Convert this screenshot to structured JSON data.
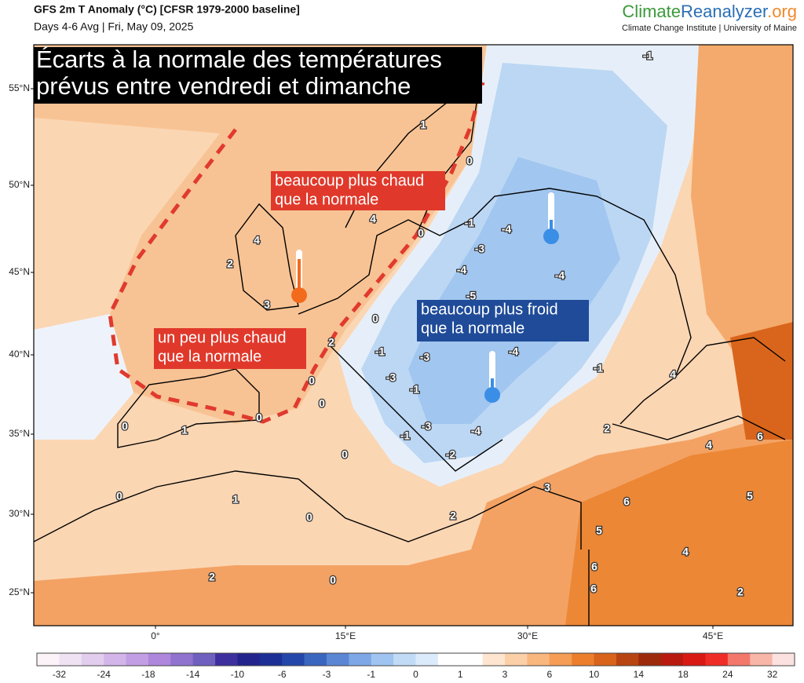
{
  "header": {
    "title": "GFS 2m T Anomaly (°C) [CFSR 1979-2000 baseline]",
    "subtitle": "Days 4-6 Avg | Fri, May 09, 2025",
    "brand": {
      "part1": "Climate",
      "part2": "Reanalyzer",
      "part3": ".org"
    },
    "institute": "Climate Change Institute | University of Maine"
  },
  "map": {
    "headline": [
      "Écarts à la normale des températures",
      "prévus entre vendredi et dimanche"
    ],
    "annotations": [
      {
        "lines": [
          "beaucoup plus chaud",
          "que la normale"
        ],
        "color": "#e0392b"
      },
      {
        "lines": [
          "un peu plus chaud",
          "que la normale"
        ],
        "color": "#e0392b"
      },
      {
        "lines": [
          "beaucoup plus froid",
          "que la normale"
        ],
        "color": "#1f4b99"
      }
    ],
    "lat_labels": [
      "55°N",
      "50°N",
      "45°N",
      "40°N",
      "35°N",
      "30°N",
      "25°N"
    ],
    "lon_labels": [
      "0°",
      "15°E",
      "30°E",
      "45°E"
    ],
    "contour_labels": [
      4,
      2,
      3,
      4,
      1,
      0,
      0,
      -1,
      -4,
      -3,
      -4,
      -5,
      -4,
      0,
      2,
      -1,
      -3,
      -4,
      -3,
      -1,
      0,
      0,
      -3,
      -1,
      -4,
      -2,
      0,
      1,
      0,
      0,
      1,
      0,
      2,
      3,
      6,
      5,
      4,
      2,
      0,
      6,
      6,
      2,
      5,
      4,
      6,
      4,
      2,
      -1,
      0,
      -1
    ]
  },
  "colorbar": {
    "ticks": [
      -32,
      -24,
      -18,
      -14,
      -10,
      -6,
      -3,
      -1,
      0,
      1,
      3,
      6,
      10,
      14,
      18,
      24,
      32
    ],
    "colors": [
      "#fbf3f8",
      "#efe3f3",
      "#e2cdee",
      "#d3b5ea",
      "#c29ee4",
      "#ae86dc",
      "#8f73cf",
      "#6f5fbf",
      "#3d2f9e",
      "#22238c",
      "#1b2f97",
      "#2346aa",
      "#3a66c0",
      "#5a86d4",
      "#7da7e6",
      "#a0c4f1",
      "#c1dbf7",
      "#dcebfb",
      "#ffffff",
      "#ffffff",
      "#fde5cf",
      "#fbd0a8",
      "#f9b67d",
      "#f59c55",
      "#ec7e2c",
      "#d9631b",
      "#b84411",
      "#9c2a0b",
      "#b81a10",
      "#d91913",
      "#ef2d26",
      "#f3776b",
      "#f7b6a8",
      "#fbe2e0"
    ]
  }
}
